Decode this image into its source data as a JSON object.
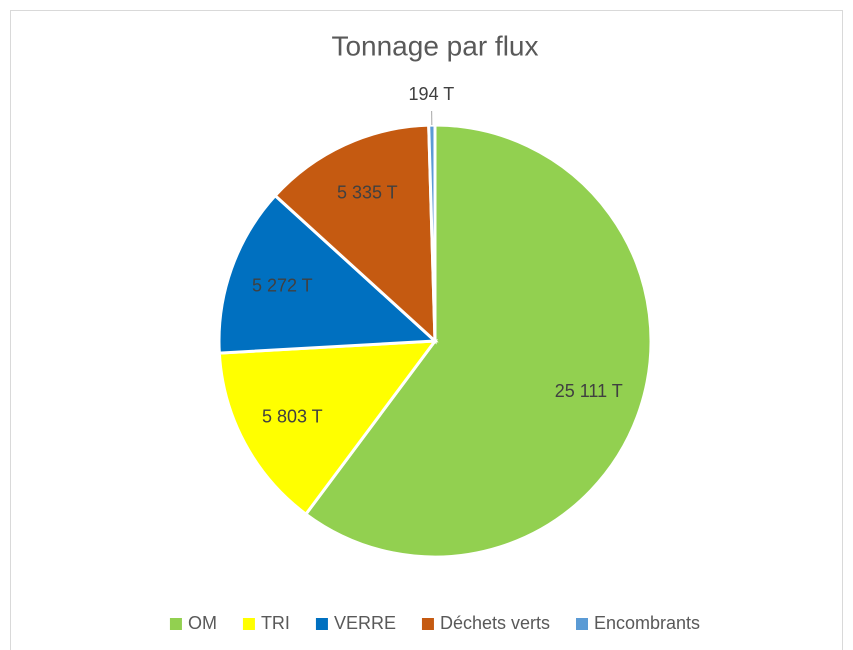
{
  "chart_data": {
    "type": "pie",
    "title": "Tonnage par flux",
    "categories": [
      "OM",
      "TRI",
      "VERRE",
      "Déchets verts",
      "Encombrants"
    ],
    "values": [
      25111,
      5803,
      5272,
      5335,
      194
    ],
    "value_labels": [
      "25 111 T",
      "5 803 T",
      "5 272 T",
      "5 335 T",
      "194 T"
    ],
    "colors": [
      "#92d050",
      "#ffff00",
      "#0070c0",
      "#c55a11",
      "#5b9bd5"
    ],
    "legend": "bottom"
  }
}
